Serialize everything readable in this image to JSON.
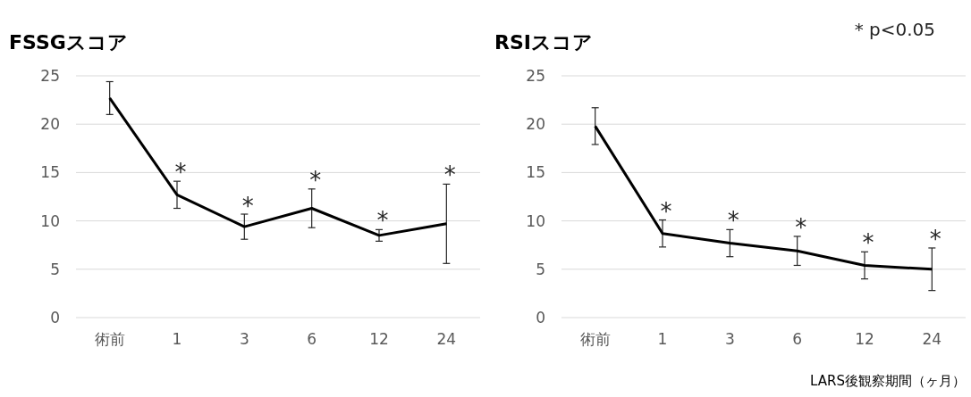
{
  "chart_data": [
    {
      "type": "line",
      "title": "FSSGスコア",
      "categories": [
        "術前",
        "1",
        "3",
        "6",
        "12",
        "24"
      ],
      "ylim": [
        0,
        25
      ],
      "yticks": [
        0,
        5,
        10,
        15,
        20,
        25
      ],
      "grid": "y",
      "series": [
        {
          "color": "#000000",
          "values": [
            22.7,
            12.7,
            9.4,
            11.3,
            8.5,
            9.7
          ],
          "errors": [
            1.7,
            1.4,
            1.3,
            2.0,
            0.6,
            4.1
          ]
        }
      ],
      "annotations": [
        {
          "text": "*",
          "x": "1",
          "y": 14.1
        },
        {
          "text": "*",
          "x": "3",
          "y": 10.65
        },
        {
          "text": "*",
          "x": "6",
          "y": 13.3
        },
        {
          "text": "*",
          "x": "12",
          "y": 9.1
        },
        {
          "text": "*",
          "x": "24",
          "y": 13.8
        }
      ]
    },
    {
      "type": "line",
      "title": "RSIスコア",
      "categories": [
        "術前",
        "1",
        "3",
        "6",
        "12",
        "24"
      ],
      "ylim": [
        0,
        25
      ],
      "yticks": [
        0,
        5,
        10,
        15,
        20,
        25
      ],
      "grid": "y",
      "xlabel": "LARS後観察期間（ヶ月）",
      "series": [
        {
          "color": "#000000",
          "values": [
            19.8,
            8.7,
            7.7,
            6.9,
            5.4,
            5.0
          ],
          "errors": [
            1.9,
            1.4,
            1.4,
            1.5,
            1.4,
            2.2
          ]
        }
      ],
      "annotations": [
        "*  p<0.05",
        {
          "text": "*",
          "x": "1",
          "y": 10.1
        },
        {
          "text": "*",
          "x": "3",
          "y": 9.1
        },
        {
          "text": "*",
          "x": "6",
          "y": 8.35
        },
        {
          "text": "*",
          "x": "12",
          "y": 6.8
        },
        {
          "text": "*",
          "x": "24",
          "y": 7.2
        }
      ]
    }
  ]
}
